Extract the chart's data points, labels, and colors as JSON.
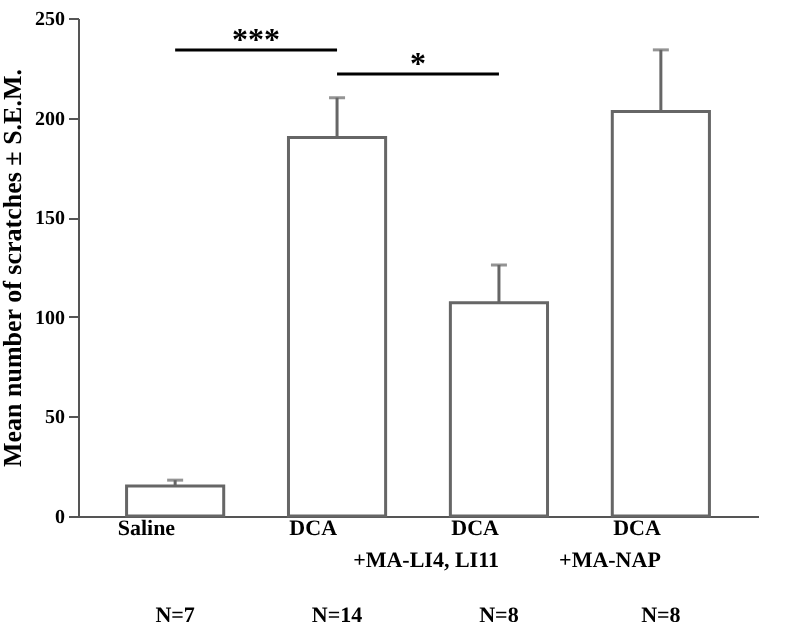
{
  "chart_data": {
    "type": "bar",
    "categories": [
      "Saline",
      "DCA",
      "DCA\n+MA-LI4, LI11",
      "DCA\n+MA-NAP"
    ],
    "values": [
      15,
      190,
      107,
      203
    ],
    "errors": [
      [
        15,
        18
      ],
      [
        190,
        210
      ],
      [
        107,
        126
      ],
      [
        203,
        234
      ]
    ],
    "color": "#ffffff",
    "ylabel": "Mean number of scratches ± S.E.M.",
    "ylim": [
      0,
      250
    ],
    "yticks": [
      0,
      50,
      100,
      150,
      200,
      250
    ],
    "grid": false,
    "annotations": [
      "***",
      "*",
      "N=7",
      "N=14",
      "N=8",
      "N=8"
    ]
  }
}
